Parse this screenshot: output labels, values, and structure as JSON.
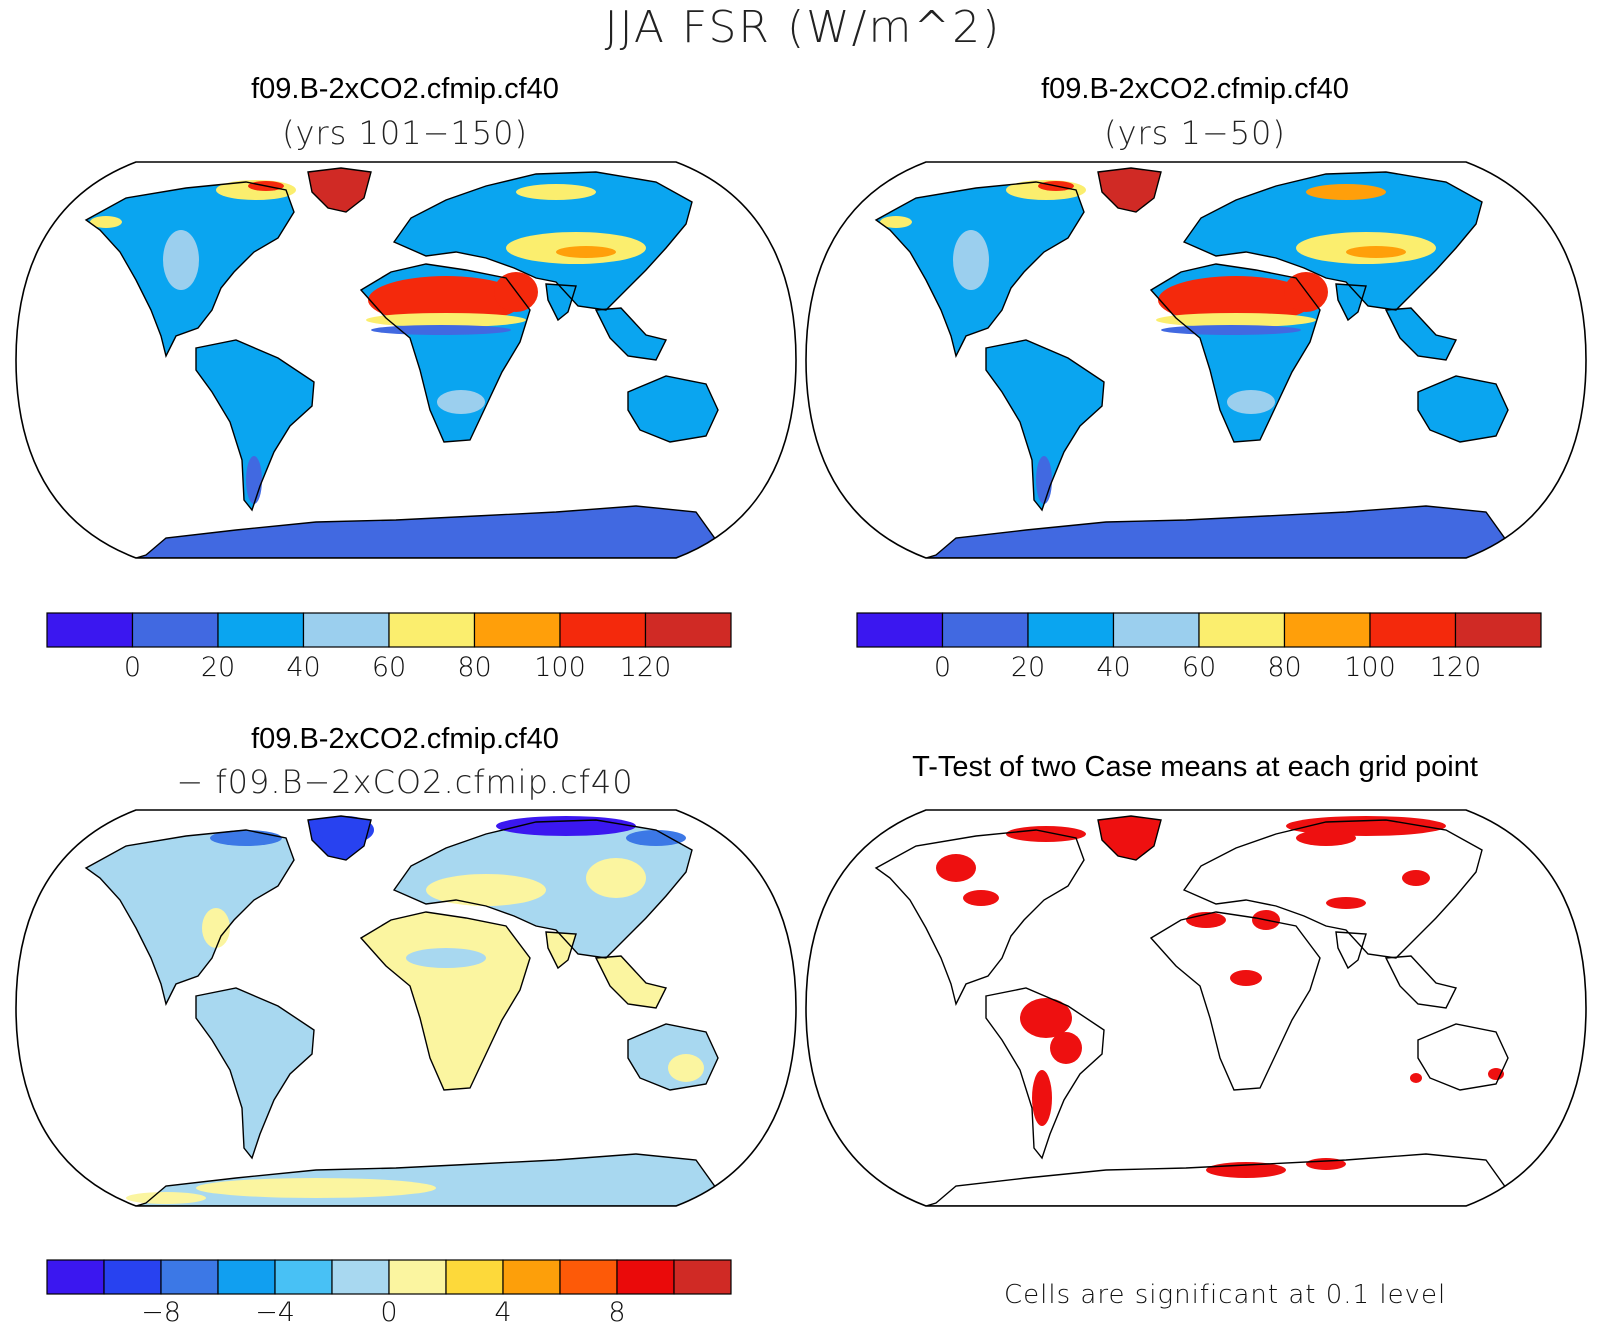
{
  "figure": {
    "title": "JJA FSR (W/m^2)"
  },
  "panels": {
    "top_left": {
      "title": "f09.B-2xCO2.cfmip.cf40",
      "subtitle": "(yrs 101−150)"
    },
    "top_right": {
      "title": "f09.B-2xCO2.cfmip.cf40",
      "subtitle": "(yrs 1−50)"
    },
    "bottom_left": {
      "title": "f09.B-2xCO2.cfmip.cf40",
      "subtitle": "− f09.B−2xCO2.cfmip.cf40"
    },
    "bottom_right": {
      "title": "T-Test of two Case means at each grid point",
      "note": "Cells are significant at 0.1 level"
    }
  },
  "colorbars": {
    "absolute": {
      "colors": [
        "#3b17f0",
        "#4169e1",
        "#0aa5f0",
        "#9bcfee",
        "#fbee6e",
        "#ff9f0a",
        "#f4290c",
        "#d02a25"
      ],
      "ticks": [
        "0",
        "20",
        "40",
        "60",
        "80",
        "100",
        "120"
      ]
    },
    "difference": {
      "colors": [
        "#3b17f0",
        "#2842f0",
        "#3c78e6",
        "#119ff0",
        "#48c1f5",
        "#a8d8f0",
        "#fbf5a0",
        "#fdd93a",
        "#fd9f0a",
        "#fd5a08",
        "#ea0a0a",
        "#d02a25"
      ],
      "ticks": [
        "−8",
        "−4",
        "0",
        "4",
        "8"
      ]
    }
  },
  "colors": {
    "significant": "#ee1010"
  }
}
